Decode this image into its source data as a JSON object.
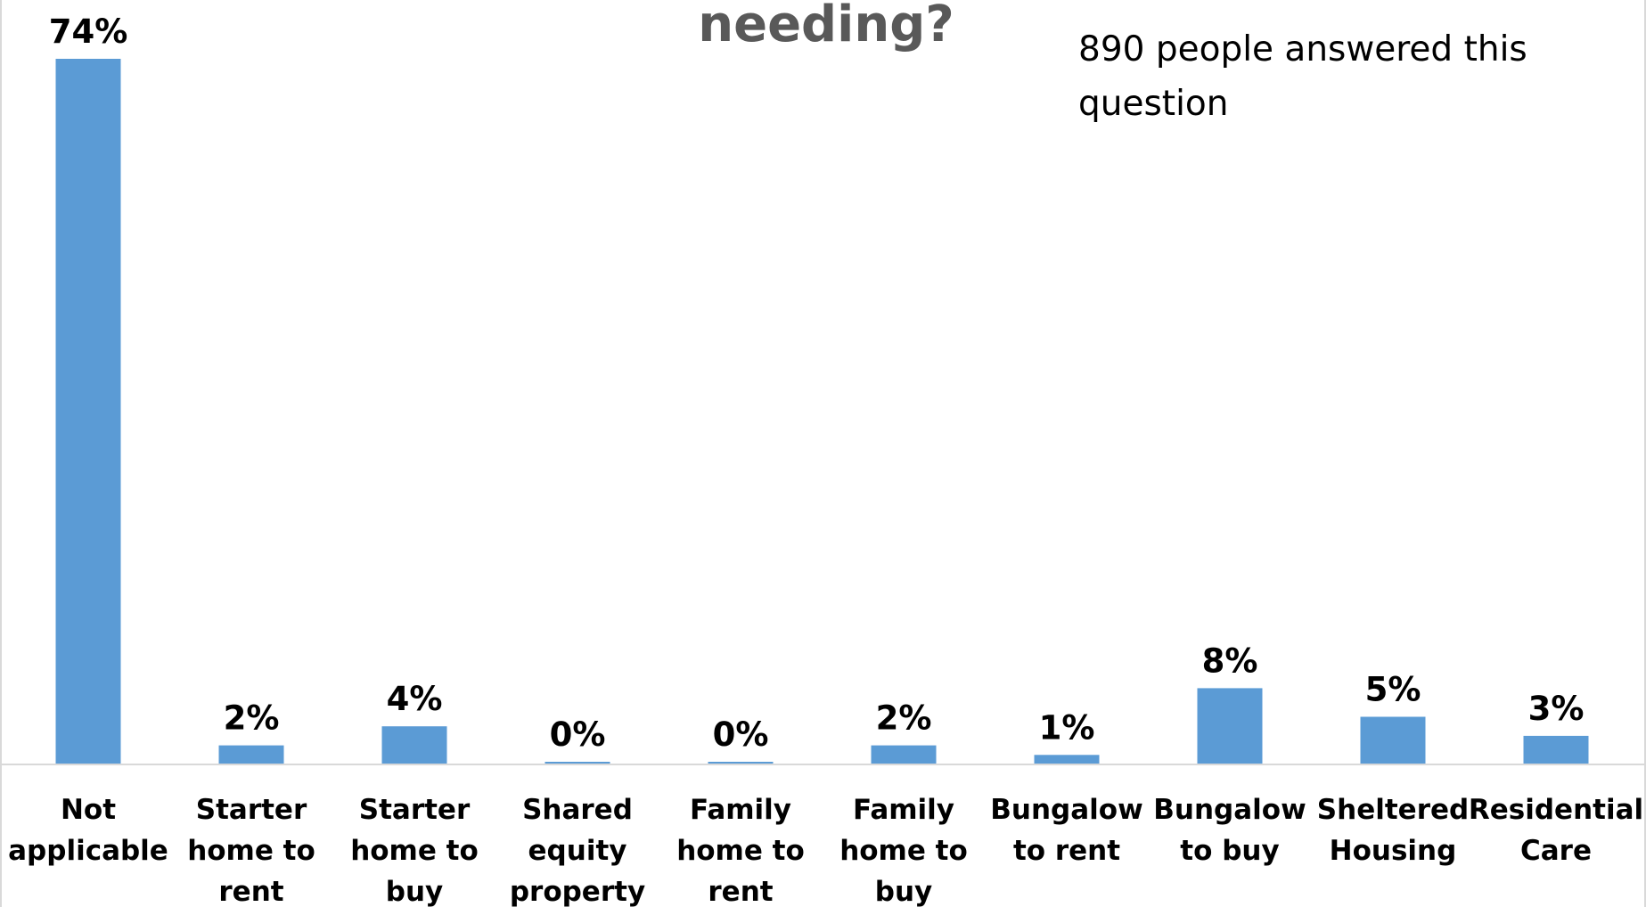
{
  "chart_data": {
    "type": "bar",
    "title": "needing?",
    "annotation": "890 people answered this question",
    "categories": [
      "Not applicable",
      "Starter home to rent",
      "Starter home to buy",
      "Shared equity property",
      "Family home to rent",
      "Family home to buy",
      "Bungalow to rent",
      "Bungalow to buy",
      "Sheltered Housing",
      "Residential Care"
    ],
    "values": [
      74,
      2,
      4,
      0,
      0,
      2,
      1,
      8,
      5,
      3
    ],
    "value_labels": [
      "74%",
      "2%",
      "4%",
      "0%",
      "0%",
      "2%",
      "1%",
      "8%",
      "5%",
      "3%"
    ],
    "ylim": [
      0,
      74
    ],
    "grid": false,
    "legend": "none",
    "colors": {
      "bar": "#5b9bd5",
      "axis": "#d9d9d9",
      "title": "#595959",
      "text": "#000000"
    }
  }
}
